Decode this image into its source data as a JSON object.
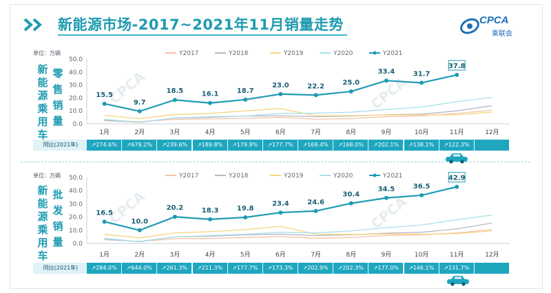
{
  "header": {
    "title": "新能源市场-2017~2021年11月销量走势",
    "logo_text": "CPCA",
    "logo_sub": "乘联会"
  },
  "colors": {
    "accent": "#1e9bb0",
    "y2017": "#f4c2a6",
    "y2018": "#b7b7c9",
    "y2019": "#f6d57f",
    "y2020": "#a9dfe8",
    "y2021": "#1f9bb3"
  },
  "panels": {
    "retail": {
      "side_title": [
        "新",
        "能",
        "源",
        "乘",
        "用",
        "车"
      ],
      "sub_title": [
        "零",
        "售",
        "销",
        "量"
      ],
      "yoy_label": "同比(2021年)",
      "yoy": [
        "274.6%",
        "679.2%",
        "239.6%",
        "189.8%",
        "179.9%",
        "177.7%",
        "169.4%",
        "168.0%",
        "202.1%",
        "138.1%",
        "122.3%",
        ""
      ]
    },
    "wholesale": {
      "side_title": [
        "新",
        "能",
        "源",
        "乘",
        "用",
        "车"
      ],
      "sub_title": [
        "批",
        "发",
        "销",
        "量"
      ],
      "yoy_label": "同比(2021年)",
      "yoy": [
        "284.0%",
        "644.0%",
        "261.3%",
        "211.3%",
        "177.7%",
        "173.3%",
        "202.9%",
        "202.3%",
        "177.0%",
        "146.1%",
        "131.7%",
        ""
      ]
    }
  },
  "chart_data": [
    {
      "type": "line",
      "title": "零售销量",
      "unit_label": "单位：万辆",
      "categories": [
        "1月",
        "2月",
        "3月",
        "4月",
        "5月",
        "6月",
        "7月",
        "8月",
        "9月",
        "10月",
        "11月",
        "12月"
      ],
      "ylim": [
        0,
        50
      ],
      "yticks": [
        "0.0",
        "10.0",
        "20.0",
        "30.0",
        "40.0",
        "50.0"
      ],
      "legend_position": "top",
      "grid": false,
      "series": [
        {
          "name": "Y2017",
          "values": [
            3.0,
            1.5,
            3.5,
            3.8,
            4.2,
            5.0,
            3.6,
            4.0,
            5.5,
            6.2,
            8.0,
            10.5
          ]
        },
        {
          "name": "Y2018",
          "values": [
            2.5,
            1.2,
            4.5,
            5.0,
            6.0,
            6.2,
            5.5,
            6.0,
            7.0,
            7.5,
            10.0,
            14.0
          ]
        },
        {
          "name": "Y2019",
          "values": [
            6.5,
            4.0,
            7.2,
            8.0,
            10.0,
            11.8,
            6.2,
            6.4,
            6.8,
            6.9,
            7.0,
            9.0
          ]
        },
        {
          "name": "Y2020",
          "values": [
            3.5,
            1.0,
            4.5,
            5.5,
            6.0,
            8.0,
            8.2,
            9.0,
            11.0,
            13.0,
            17.0,
            20.5
          ]
        },
        {
          "name": "Y2021",
          "values": [
            15.5,
            9.7,
            18.5,
            16.1,
            18.7,
            23.0,
            22.2,
            25.0,
            33.4,
            31.7,
            37.8,
            null
          ],
          "labels": [
            "15.5",
            "9.7",
            "18.5",
            "16.1",
            "18.7",
            "23.0",
            "22.2",
            "25.0",
            "33.4",
            "31.7",
            "37.8",
            ""
          ]
        }
      ]
    },
    {
      "type": "line",
      "title": "批发销量",
      "unit_label": "单位：万辆",
      "categories": [
        "1月",
        "2月",
        "3月",
        "4月",
        "5月",
        "6月",
        "7月",
        "8月",
        "9月",
        "10月",
        "11月",
        "12月"
      ],
      "ylim": [
        0,
        50
      ],
      "yticks": [
        "0.0",
        "10.0",
        "20.0",
        "30.0",
        "40.0",
        "50.0"
      ],
      "legend_position": "top",
      "grid": false,
      "series": [
        {
          "name": "Y2017",
          "values": [
            3.0,
            1.5,
            3.6,
            3.8,
            4.5,
            5.2,
            4.0,
            4.5,
            6.0,
            6.5,
            8.0,
            10.5
          ]
        },
        {
          "name": "Y2018",
          "values": [
            3.0,
            1.5,
            5.0,
            5.5,
            6.5,
            7.0,
            6.0,
            6.5,
            7.8,
            8.5,
            11.0,
            15.5
          ]
        },
        {
          "name": "Y2019",
          "values": [
            7.0,
            4.2,
            8.0,
            9.0,
            10.5,
            13.0,
            7.0,
            6.8,
            7.2,
            7.0,
            7.5,
            9.5
          ]
        },
        {
          "name": "Y2020",
          "values": [
            4.0,
            1.2,
            5.0,
            6.0,
            7.0,
            8.5,
            8.0,
            9.5,
            12.0,
            14.0,
            18.0,
            21.5
          ]
        },
        {
          "name": "Y2021",
          "values": [
            16.5,
            10.0,
            20.2,
            18.3,
            19.8,
            23.4,
            24.6,
            30.4,
            34.5,
            36.5,
            42.9,
            null
          ],
          "labels": [
            "16.5",
            "10.0",
            "20.2",
            "18.3",
            "19.8",
            "23.4",
            "24.6",
            "30.4",
            "34.5",
            "36.5",
            "42.9",
            ""
          ]
        }
      ]
    }
  ]
}
